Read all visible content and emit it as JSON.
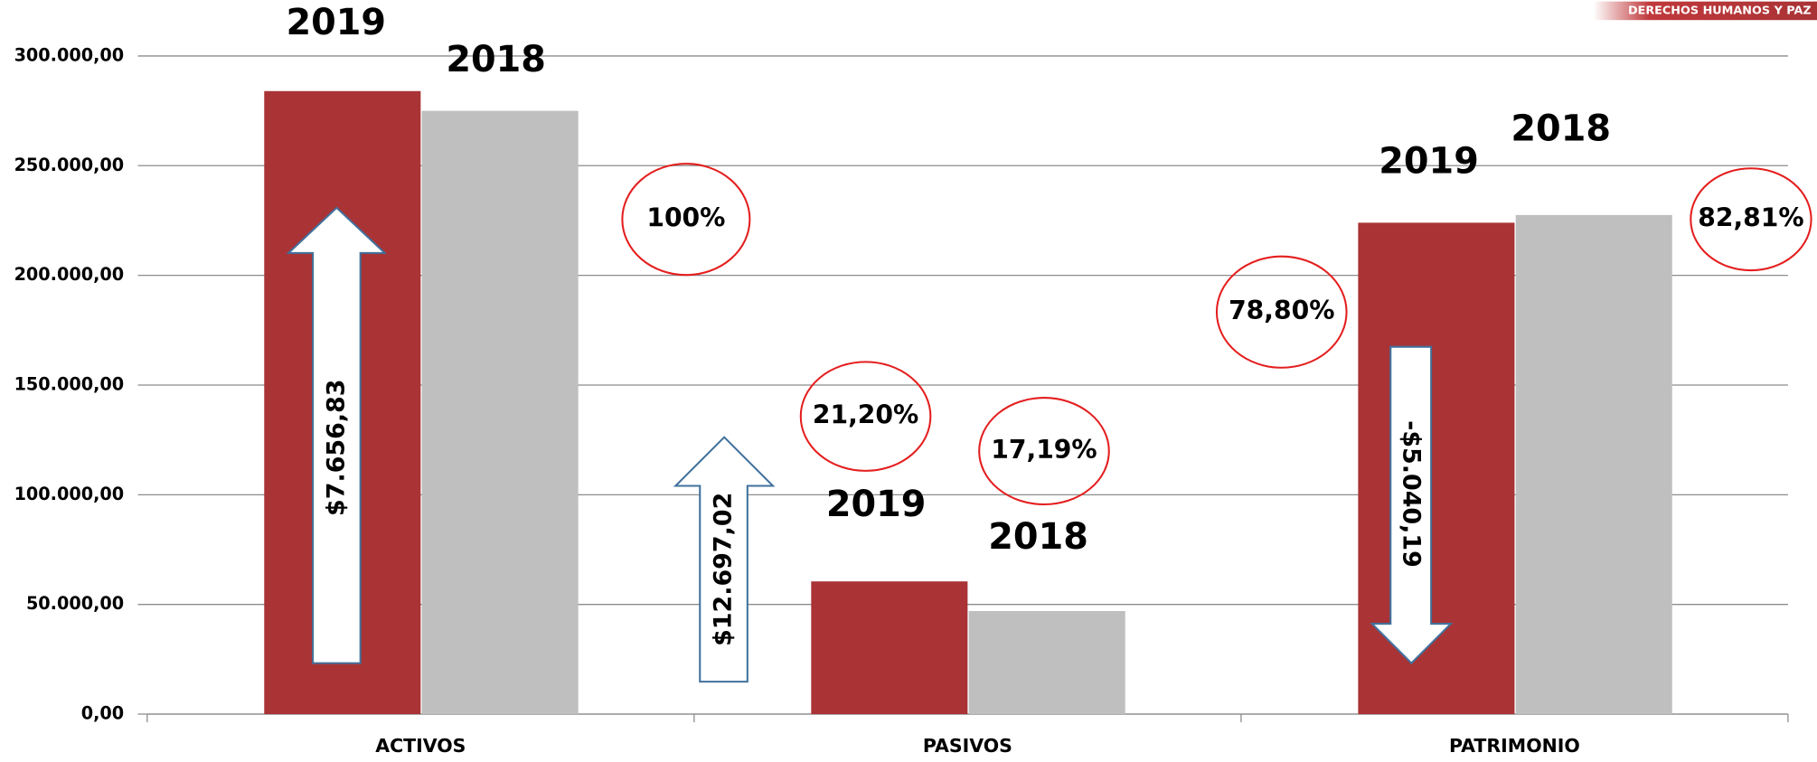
{
  "chart_data": {
    "type": "bar",
    "brand": "DERECHOS HUMANOS Y PAZ",
    "categories": [
      "ACTIVOS",
      "PASIVOS",
      "PATRIMONIO"
    ],
    "series": [
      {
        "name": "2019",
        "color": "#a93335",
        "values": [
          284000,
          60500,
          224000
        ]
      },
      {
        "name": "2018",
        "color": "#bfbfbf",
        "values": [
          275000,
          47000,
          227500
        ]
      }
    ],
    "ylim": [
      0,
      300000
    ],
    "yticks": [
      {
        "value": 0,
        "label": "0,00"
      },
      {
        "value": 50000,
        "label": "50.000,00"
      },
      {
        "value": 100000,
        "label": "100.000,00"
      },
      {
        "value": 150000,
        "label": "150.000,00"
      },
      {
        "value": 200000,
        "label": "200.000,00"
      },
      {
        "value": 250000,
        "label": "250.000,00"
      },
      {
        "value": 300000,
        "label": "300.000,00"
      }
    ],
    "grid": true,
    "percent_annotations": [
      "100%",
      "21,20%",
      "17,19%",
      "78,80%",
      "82,81%"
    ],
    "arrow_annotations": [
      "$7.656,83",
      "$12.697,02",
      "-$5.040,19"
    ]
  }
}
